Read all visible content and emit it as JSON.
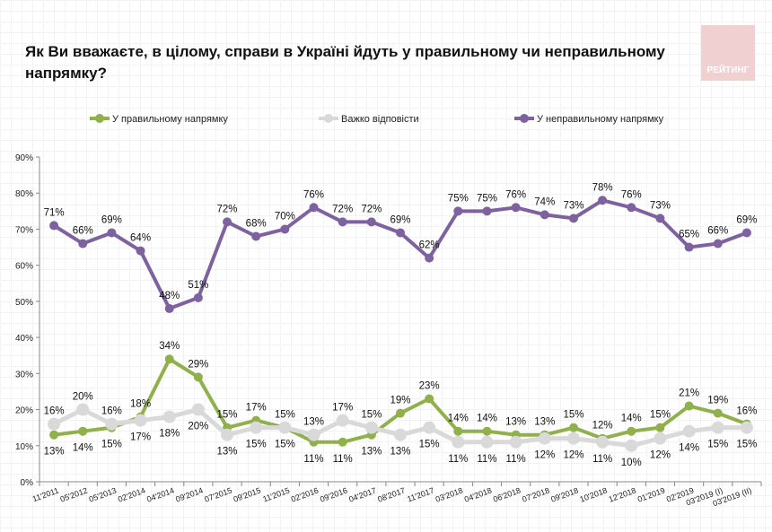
{
  "title": "Як Ви вважаєте, в цілому, справи в Україні йдуть у правильному чи неправильному напрямку?",
  "logo_text": "РЕЙТИНГ",
  "chart_data": {
    "type": "line",
    "title": "Як Ви вважаєте, в цілому, справи в Україні йдуть у правильному чи неправильному напрямку?",
    "legend_position": "top",
    "grid": false,
    "ylim": [
      0,
      90
    ],
    "y_ticks": [
      "0%",
      "10%",
      "20%",
      "30%",
      "40%",
      "50%",
      "60%",
      "70%",
      "80%",
      "90%"
    ],
    "categories": [
      "11'2011",
      "05'2012",
      "05'2013",
      "02'2014",
      "04'2014",
      "09'2014",
      "07'2015",
      "09'2015",
      "11'2015",
      "02'2016",
      "09'2016",
      "04'2017",
      "08'2017",
      "11'2017",
      "03'2018",
      "04'2018",
      "06'2018",
      "07'2018",
      "09'2018",
      "10'2018",
      "12'2018",
      "01'2019",
      "02'2019",
      "03'2019 (I)",
      "03'2019 (II)"
    ],
    "series": [
      {
        "name": "У правильному напрямку",
        "color": "#8fb04a",
        "values": [
          13,
          14,
          15,
          18,
          34,
          29,
          15,
          17,
          15,
          11,
          11,
          13,
          19,
          23,
          14,
          14,
          13,
          13,
          15,
          12,
          14,
          15,
          21,
          19,
          16
        ]
      },
      {
        "name": "Важко відповісти",
        "color": "#d9d9d9",
        "values": [
          16,
          20,
          16,
          17,
          18,
          20,
          13,
          15,
          15,
          13,
          17,
          15,
          13,
          15,
          11,
          11,
          11,
          12,
          12,
          11,
          10,
          12,
          14,
          15,
          15
        ]
      },
      {
        "name": "У неправильному напрямку",
        "color": "#7e62a0",
        "values": [
          71,
          66,
          69,
          64,
          48,
          51,
          72,
          68,
          70,
          76,
          72,
          72,
          69,
          62,
          75,
          75,
          76,
          74,
          73,
          78,
          76,
          73,
          65,
          66,
          69
        ]
      }
    ]
  }
}
